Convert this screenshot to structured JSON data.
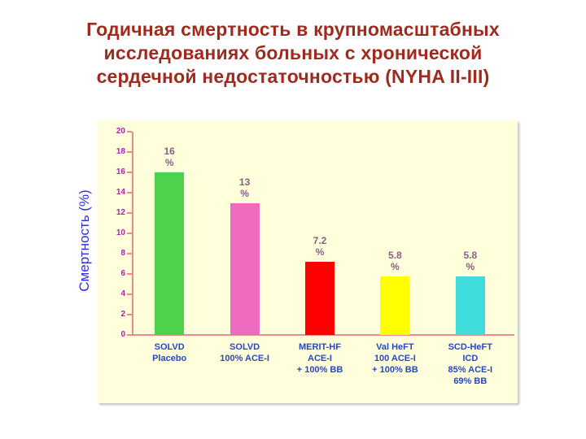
{
  "title": {
    "lines": [
      "Годичная смертность в крупномасштабных",
      "исследованиях больных с хронической",
      "сердечной недостаточностью (NYHA II-III)"
    ],
    "color": "#9e2b1e"
  },
  "chart_data": {
    "type": "bar",
    "title": "Годичная смертность в крупномасштабных исследованиях больных с хронической сердечной недостаточностью (NYHA II-III)",
    "xlabel": "",
    "ylabel": "Смертность (%)",
    "ylim": [
      0,
      20
    ],
    "yticks": [
      0,
      2,
      4,
      6,
      8,
      10,
      12,
      14,
      16,
      18,
      20
    ],
    "grid": false,
    "legend": null,
    "categories": [
      [
        "SOLVD",
        "Placebo"
      ],
      [
        "SOLVD",
        "100% ACE-I"
      ],
      [
        "MERIT-HF",
        "ACE-I",
        "+ 100% BB"
      ],
      [
        "Val HeFT",
        "100 ACE-I",
        "+ 100% BB"
      ],
      [
        "SCD-HeFT",
        "ICD",
        "85% ACE-I",
        "69% BB"
      ]
    ],
    "values": [
      16,
      13,
      7.2,
      5.8,
      5.8
    ],
    "value_labels": [
      [
        "16",
        "%"
      ],
      [
        "13",
        "%"
      ],
      [
        "7.2",
        "%"
      ],
      [
        "5.8",
        "%"
      ],
      [
        "5.8",
        "%"
      ]
    ],
    "bar_colors": [
      "#4cd24c",
      "#ef6bc0",
      "#ff0000",
      "#ffff00",
      "#40dcdc"
    ],
    "colors": {
      "plot_background": "#ffffdc",
      "axis": "#ef8a8a",
      "tick_label": "#b020b0",
      "value_label": "#8b5d86",
      "category_label": "#2646c8",
      "ylabel": "#2f2fd2",
      "title": "#9e2b1e"
    }
  }
}
